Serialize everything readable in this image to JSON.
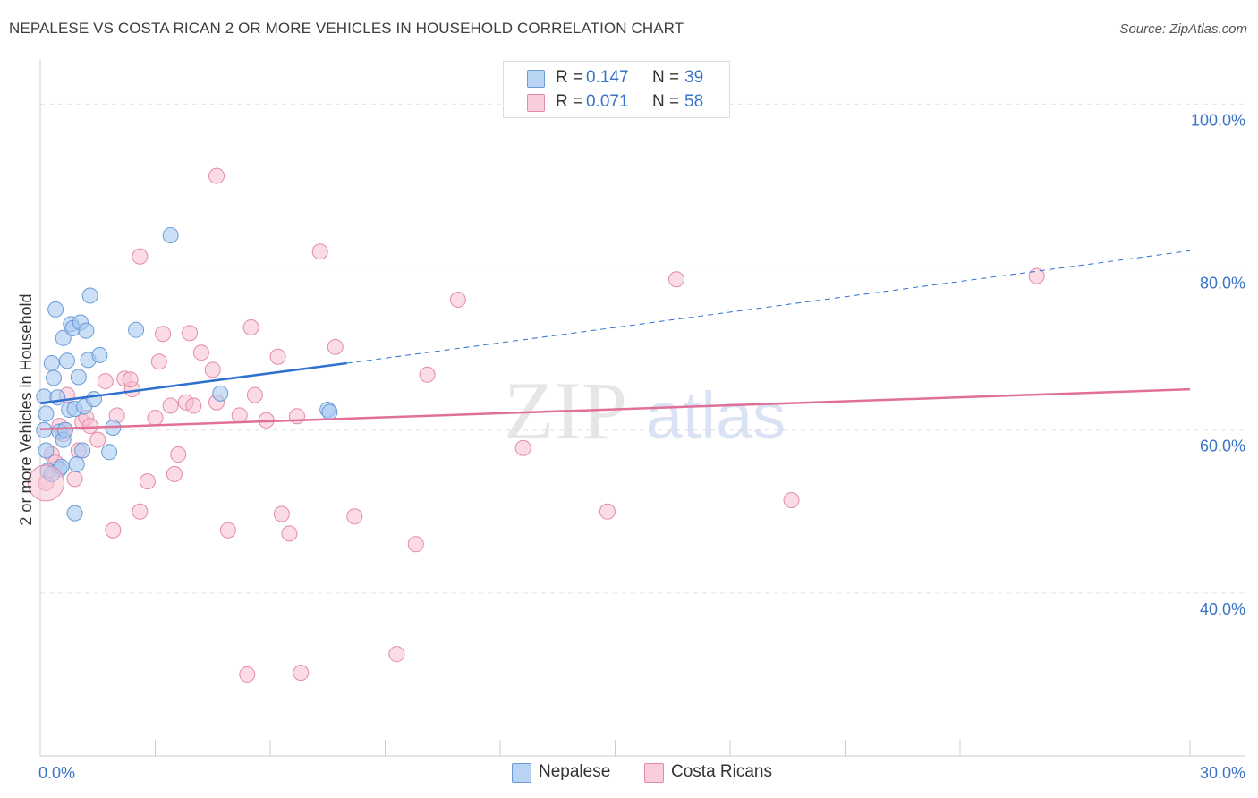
{
  "header": {
    "title": "NEPALESE VS COSTA RICAN 2 OR MORE VEHICLES IN HOUSEHOLD CORRELATION CHART",
    "source": "Source: ZipAtlas.com"
  },
  "legend_top": {
    "nepalese": {
      "r_label": "R =",
      "r_value": "0.147",
      "n_label": "N =",
      "n_value": "39"
    },
    "costa_rican": {
      "r_label": "R =",
      "r_value": "0.071",
      "n_label": "N =",
      "n_value": "58"
    }
  },
  "legend_bottom": {
    "nepalese": "Nepalese",
    "costa_rican": "Costa Ricans"
  },
  "colors": {
    "nepalese_fill": "#a9c9f0",
    "nepalese_stroke": "#6a9ad8",
    "nepalese_line": "#2e6fcf",
    "costa_fill": "#f7bfd0",
    "costa_stroke": "#e48aa8",
    "costa_line": "#e07097",
    "tick_label": "#3b73c6",
    "grid": "#e2e2e2",
    "axis": "#cccccc"
  },
  "chart_data": {
    "type": "scatter",
    "title": "NEPALESE VS COSTA RICAN 2 OR MORE VEHICLES IN HOUSEHOLD CORRELATION CHART",
    "xlabel": "",
    "ylabel": "2 or more Vehicles in Household",
    "xlim": [
      0,
      30
    ],
    "ylim": [
      20,
      104
    ],
    "x_tick_labels": [
      {
        "value": 0,
        "label": "0.0%"
      },
      {
        "value": 30,
        "label": "30.0%"
      }
    ],
    "y_tick_labels": [
      {
        "value": 40,
        "label": "40.0%"
      },
      {
        "value": 60,
        "label": "60.0%"
      },
      {
        "value": 80,
        "label": "80.0%"
      },
      {
        "value": 100,
        "label": "100.0%"
      }
    ],
    "watermark": {
      "zip": "ZIP",
      "atlas": "atlas"
    },
    "series": [
      {
        "name": "Nepalese",
        "r": 0.147,
        "n": 39,
        "trend": {
          "x0": 0,
          "y0": 63.3,
          "x1": 8.0,
          "y1": 68.2,
          "dash_x1": 30,
          "dash_y1": 82.0
        },
        "points": [
          [
            0.1,
            64.1
          ],
          [
            0.15,
            62.0
          ],
          [
            0.1,
            60.0
          ],
          [
            0.15,
            57.5
          ],
          [
            0.2,
            55.0
          ],
          [
            0.3,
            68.2
          ],
          [
            0.35,
            66.4
          ],
          [
            0.4,
            74.8
          ],
          [
            0.5,
            55.2
          ],
          [
            0.5,
            59.8
          ],
          [
            0.6,
            71.3
          ],
          [
            0.6,
            58.8
          ],
          [
            0.65,
            60.0
          ],
          [
            0.7,
            68.5
          ],
          [
            0.75,
            62.5
          ],
          [
            0.8,
            73.0
          ],
          [
            0.85,
            72.5
          ],
          [
            0.9,
            62.6
          ],
          [
            0.9,
            49.8
          ],
          [
            0.95,
            55.8
          ],
          [
            1.0,
            66.5
          ],
          [
            1.05,
            73.2
          ],
          [
            1.1,
            57.5
          ],
          [
            1.15,
            62.9
          ],
          [
            1.2,
            72.2
          ],
          [
            1.25,
            68.6
          ],
          [
            1.3,
            76.5
          ],
          [
            1.4,
            63.8
          ],
          [
            1.55,
            69.2
          ],
          [
            1.8,
            57.3
          ],
          [
            1.9,
            60.3
          ],
          [
            2.5,
            72.3
          ],
          [
            3.4,
            83.9
          ],
          [
            4.7,
            64.5
          ],
          [
            7.5,
            62.5
          ],
          [
            7.55,
            62.2
          ],
          [
            0.3,
            54.6
          ],
          [
            0.55,
            55.5
          ],
          [
            0.45,
            64.0
          ]
        ]
      },
      {
        "name": "Costa Ricans",
        "r": 0.071,
        "n": 58,
        "trend": {
          "x0": 0,
          "y0": 60.1,
          "x1": 30,
          "y1": 65.0
        },
        "points": [
          [
            0.15,
            53.5
          ],
          [
            0.3,
            57.0
          ],
          [
            0.4,
            56.0
          ],
          [
            0.5,
            60.5
          ],
          [
            0.6,
            59.5
          ],
          [
            0.65,
            60.0
          ],
          [
            0.7,
            64.3
          ],
          [
            0.9,
            54.0
          ],
          [
            1.0,
            57.5
          ],
          [
            1.1,
            61.0
          ],
          [
            1.2,
            61.5
          ],
          [
            1.3,
            60.5
          ],
          [
            1.5,
            58.8
          ],
          [
            1.7,
            66.0
          ],
          [
            1.9,
            47.7
          ],
          [
            2.0,
            61.8
          ],
          [
            2.2,
            66.3
          ],
          [
            2.4,
            65.0
          ],
          [
            2.35,
            66.2
          ],
          [
            2.6,
            81.3
          ],
          [
            2.6,
            50.0
          ],
          [
            2.8,
            53.7
          ],
          [
            3.0,
            61.5
          ],
          [
            3.1,
            68.4
          ],
          [
            3.2,
            71.8
          ],
          [
            3.4,
            63.0
          ],
          [
            3.5,
            54.6
          ],
          [
            3.6,
            57.0
          ],
          [
            3.8,
            63.4
          ],
          [
            3.9,
            71.9
          ],
          [
            4.0,
            63.0
          ],
          [
            4.2,
            69.5
          ],
          [
            4.5,
            67.4
          ],
          [
            4.6,
            63.4
          ],
          [
            4.6,
            91.2
          ],
          [
            4.9,
            47.7
          ],
          [
            5.2,
            61.8
          ],
          [
            5.4,
            30.0
          ],
          [
            5.5,
            72.6
          ],
          [
            5.6,
            64.3
          ],
          [
            5.9,
            61.2
          ],
          [
            6.2,
            69.0
          ],
          [
            6.3,
            49.7
          ],
          [
            6.5,
            47.3
          ],
          [
            6.7,
            61.7
          ],
          [
            6.8,
            30.2
          ],
          [
            7.3,
            81.9
          ],
          [
            7.7,
            70.2
          ],
          [
            8.2,
            49.4
          ],
          [
            9.3,
            32.5
          ],
          [
            9.8,
            46.0
          ],
          [
            10.1,
            66.8
          ],
          [
            10.9,
            76.0
          ],
          [
            12.6,
            57.8
          ],
          [
            14.8,
            50.0
          ],
          [
            16.6,
            78.5
          ],
          [
            19.6,
            51.4
          ],
          [
            26.0,
            78.9
          ]
        ]
      }
    ]
  }
}
